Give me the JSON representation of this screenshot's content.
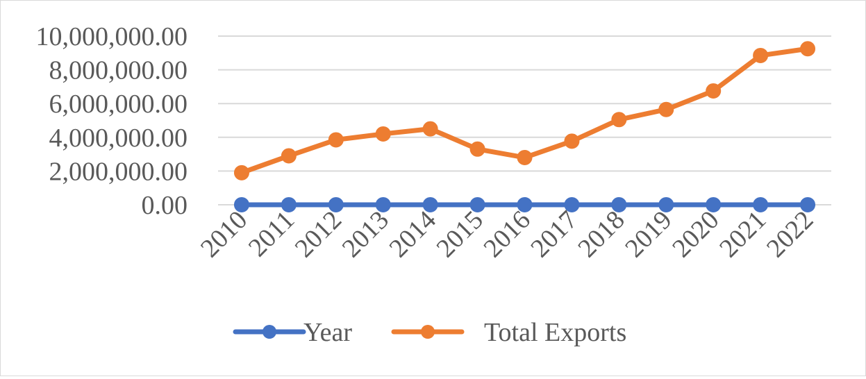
{
  "chart_data": {
    "type": "line",
    "title": "",
    "xlabel": "",
    "ylabel": "",
    "categories": [
      "2010",
      "2011",
      "2012",
      "2013",
      "2014",
      "2015",
      "2016",
      "2017",
      "2018",
      "2019",
      "2020",
      "2021",
      "2022"
    ],
    "ylim": [
      0,
      10000000
    ],
    "yticks": [
      0,
      2000000,
      4000000,
      6000000,
      8000000,
      10000000
    ],
    "ytick_labels": [
      "0.00",
      "2,000,000.00",
      "4,000,000.00",
      "6,000,000.00",
      "8,000,000.00",
      "10,000,000.00"
    ],
    "grid": true,
    "legend_position": "bottom",
    "series": [
      {
        "name": "Year",
        "color": "#4472C4",
        "values": [
          2010,
          2011,
          2012,
          2013,
          2014,
          2015,
          2016,
          2017,
          2018,
          2019,
          2020,
          2021,
          2022
        ]
      },
      {
        "name": "Total Exports",
        "color": "#ED7D31",
        "values": [
          1900000,
          2900000,
          3850000,
          4200000,
          4500000,
          3300000,
          2800000,
          3770000,
          5050000,
          5650000,
          6750000,
          8850000,
          9250000
        ]
      }
    ]
  }
}
